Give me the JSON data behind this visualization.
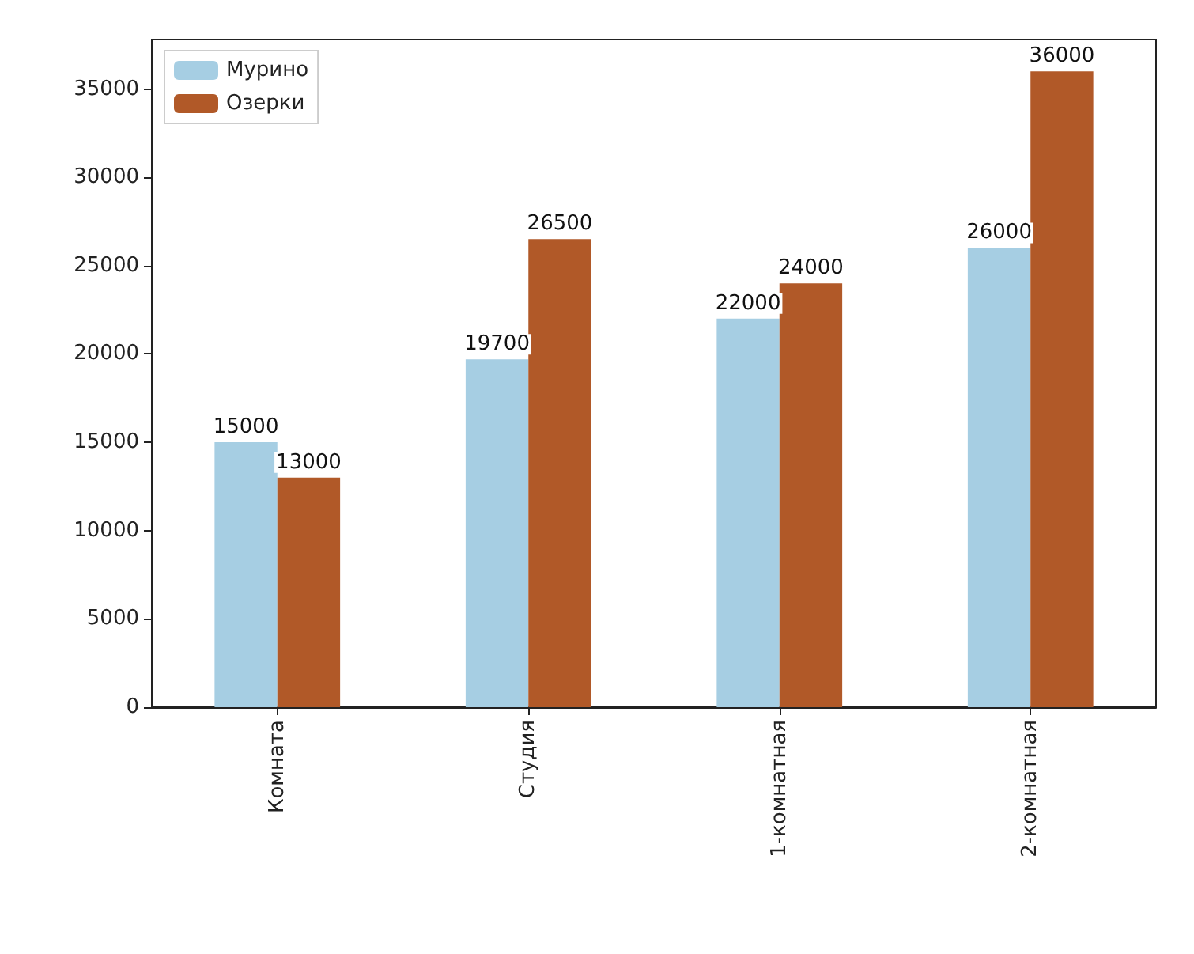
{
  "chart_data": {
    "type": "bar",
    "categories": [
      "Комната",
      "Студия",
      "1-комнатная",
      "2-комнатная"
    ],
    "series": [
      {
        "name": "Мурино",
        "color": "#a6cee3",
        "values": [
          15000,
          19700,
          22000,
          26000
        ]
      },
      {
        "name": "Озерки",
        "color": "#b15928",
        "values": [
          13000,
          26500,
          24000,
          36000
        ]
      }
    ],
    "ylim": [
      0,
      37800
    ],
    "yticks": [
      0,
      5000,
      10000,
      15000,
      20000,
      25000,
      30000,
      35000
    ],
    "grid": false,
    "legend": "top left",
    "data_labels": true
  }
}
